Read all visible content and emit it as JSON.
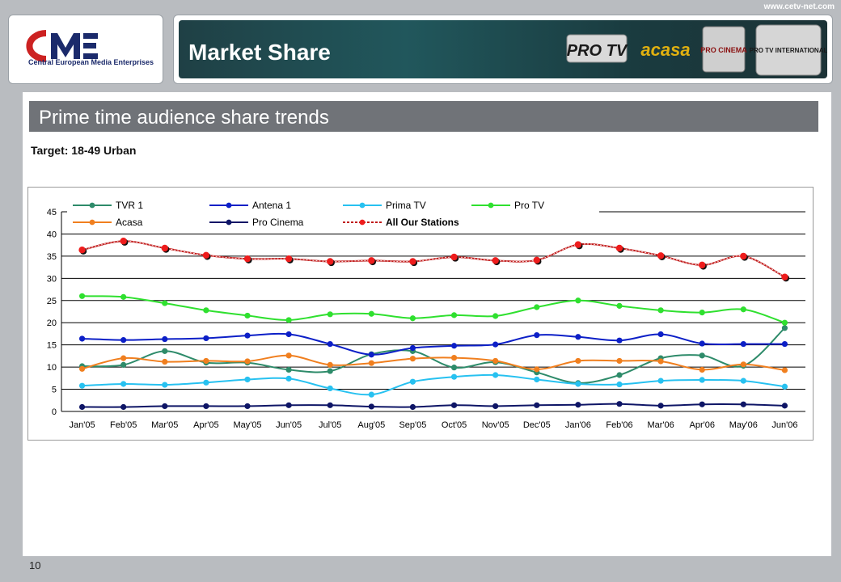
{
  "header": {
    "url": "www.cetv-net.com",
    "title": "Market Share",
    "logo_name": "Central European Media Enterprises",
    "logo_mark": "CME",
    "channel_logos": [
      "PRO TV",
      "acasa",
      "PRO CINEMA",
      "PRO TV INTERNATIONAL"
    ]
  },
  "section": {
    "title": "Prime time audience share trends"
  },
  "target": "Target: 18-49 Urban",
  "footer": {
    "page_number": "10"
  },
  "colors": {
    "TVR 1": "#2e8b6a",
    "Antena 1": "#0c1fc7",
    "Prima TV": "#27c1f0",
    "Pro TV": "#2fe02f",
    "Acasa": "#f07f1f",
    "Pro Cinema": "#0e1566",
    "All Our Stations": "#e02020"
  },
  "chart_data": {
    "type": "line",
    "title": "",
    "xlabel": "",
    "ylabel": "",
    "ylim": [
      0,
      45
    ],
    "yticks": [
      0,
      5,
      10,
      15,
      20,
      25,
      30,
      35,
      40,
      45
    ],
    "grid": "horizontal",
    "legend_position": "top",
    "categories": [
      "Jan'05",
      "Feb'05",
      "Mar'05",
      "Apr'05",
      "May'05",
      "Jun'05",
      "Jul'05",
      "Aug'05",
      "Sep'05",
      "Oct'05",
      "Nov'05",
      "Dec'05",
      "Jan'06",
      "Feb'06",
      "Mar'06",
      "Apr'06",
      "May'06",
      "Jun'06"
    ],
    "series": [
      {
        "name": "TVR 1",
        "values": [
          10.2,
          10.5,
          13.6,
          11.0,
          11.0,
          9.4,
          9.1,
          12.9,
          13.6,
          9.9,
          11.1,
          8.8,
          6.4,
          8.2,
          12.0,
          12.6,
          10.3,
          18.8
        ]
      },
      {
        "name": "Antena 1",
        "values": [
          16.4,
          16.1,
          16.3,
          16.5,
          17.1,
          17.4,
          15.2,
          12.8,
          14.3,
          14.8,
          15.1,
          17.2,
          16.8,
          16.0,
          17.4,
          15.3,
          15.2,
          15.2
        ]
      },
      {
        "name": "Prima TV",
        "values": [
          5.8,
          6.2,
          6.0,
          6.5,
          7.2,
          7.4,
          5.2,
          3.8,
          6.7,
          7.8,
          8.2,
          7.2,
          6.2,
          6.1,
          6.9,
          7.1,
          6.9,
          5.6
        ]
      },
      {
        "name": "Pro TV",
        "values": [
          26.0,
          25.8,
          24.4,
          22.8,
          21.6,
          20.6,
          21.9,
          22.0,
          21.0,
          21.7,
          21.5,
          23.5,
          25.0,
          23.8,
          22.8,
          22.3,
          23.0,
          20.0
        ]
      },
      {
        "name": "Acasa",
        "values": [
          9.6,
          12.0,
          11.2,
          11.4,
          11.3,
          12.6,
          10.5,
          10.9,
          11.9,
          12.1,
          11.4,
          9.5,
          11.4,
          11.4,
          11.3,
          9.4,
          10.6,
          9.3
        ]
      },
      {
        "name": "Pro Cinema",
        "values": [
          1.0,
          1.0,
          1.2,
          1.2,
          1.2,
          1.4,
          1.4,
          1.1,
          1.0,
          1.4,
          1.2,
          1.4,
          1.5,
          1.7,
          1.3,
          1.6,
          1.6,
          1.3
        ]
      },
      {
        "name": "All Our Stations",
        "values": [
          36.4,
          38.4,
          36.8,
          35.2,
          34.4,
          34.4,
          33.8,
          34.0,
          33.8,
          34.8,
          34.0,
          34.1,
          37.6,
          36.8,
          35.1,
          33.0,
          35.0,
          30.3
        ]
      }
    ]
  }
}
